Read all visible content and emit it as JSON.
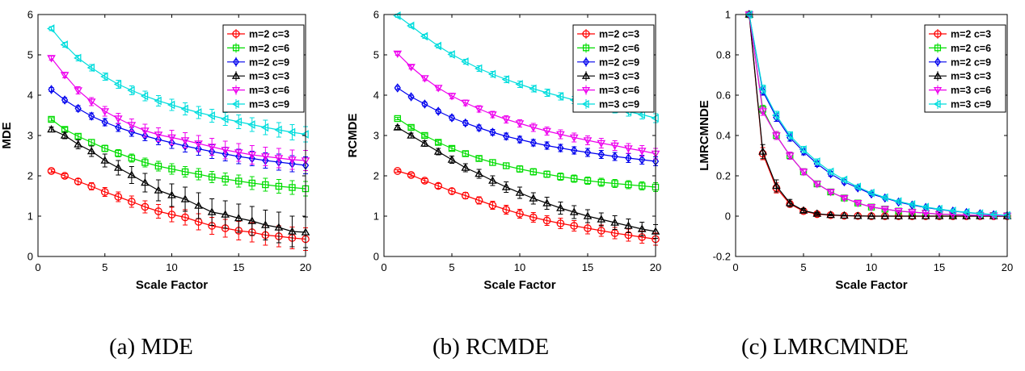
{
  "chart_data": [
    {
      "type": "line",
      "caption": "(a)   MDE",
      "ylabel": "MDE",
      "xlabel": "Scale Factor",
      "xlim": [
        0,
        20
      ],
      "ylim": [
        0,
        6
      ],
      "xticks": [
        0,
        5,
        10,
        15,
        20
      ],
      "yticks": [
        0,
        1,
        2,
        3,
        4,
        5,
        6
      ],
      "x": [
        1,
        2,
        3,
        4,
        5,
        6,
        7,
        8,
        9,
        10,
        11,
        12,
        13,
        14,
        15,
        16,
        17,
        18,
        19,
        20
      ],
      "legend_position": "top-right",
      "series": [
        {
          "name": "m=2 c=3",
          "color": "#ff0000",
          "marker": "circle",
          "values": [
            2.12,
            2.0,
            1.86,
            1.74,
            1.6,
            1.48,
            1.36,
            1.23,
            1.12,
            1.04,
            0.97,
            0.86,
            0.76,
            0.7,
            0.64,
            0.6,
            0.53,
            0.5,
            0.46,
            0.43
          ],
          "errors": [
            0.04,
            0.05,
            0.07,
            0.09,
            0.11,
            0.12,
            0.14,
            0.15,
            0.17,
            0.18,
            0.19,
            0.2,
            0.21,
            0.22,
            0.23,
            0.24,
            0.25,
            0.26,
            0.27,
            0.28
          ]
        },
        {
          "name": "m=2 c=6",
          "color": "#00dd00",
          "marker": "square",
          "values": [
            3.4,
            3.15,
            2.98,
            2.83,
            2.68,
            2.56,
            2.44,
            2.33,
            2.24,
            2.17,
            2.1,
            2.04,
            1.97,
            1.92,
            1.87,
            1.82,
            1.78,
            1.74,
            1.71,
            1.68
          ],
          "errors": [
            0.04,
            0.05,
            0.06,
            0.07,
            0.08,
            0.09,
            0.1,
            0.11,
            0.12,
            0.13,
            0.13,
            0.14,
            0.14,
            0.15,
            0.15,
            0.16,
            0.16,
            0.17,
            0.17,
            0.18
          ]
        },
        {
          "name": "m=2 c=9",
          "color": "#0000ee",
          "marker": "diamond",
          "values": [
            4.14,
            3.88,
            3.67,
            3.48,
            3.33,
            3.2,
            3.09,
            2.99,
            2.9,
            2.82,
            2.74,
            2.67,
            2.6,
            2.54,
            2.48,
            2.43,
            2.38,
            2.34,
            2.3,
            2.26
          ],
          "errors": [
            0.05,
            0.06,
            0.07,
            0.08,
            0.09,
            0.1,
            0.11,
            0.12,
            0.13,
            0.14,
            0.15,
            0.16,
            0.17,
            0.17,
            0.18,
            0.18,
            0.19,
            0.2,
            0.2,
            0.21
          ]
        },
        {
          "name": "m=3 c=3",
          "color": "#000000",
          "marker": "triangle-up",
          "values": [
            3.15,
            3.0,
            2.78,
            2.61,
            2.38,
            2.2,
            2.02,
            1.83,
            1.64,
            1.52,
            1.42,
            1.26,
            1.1,
            1.04,
            0.95,
            0.88,
            0.78,
            0.72,
            0.62,
            0.6
          ],
          "errors": [
            0.06,
            0.08,
            0.11,
            0.13,
            0.16,
            0.18,
            0.21,
            0.23,
            0.26,
            0.28,
            0.3,
            0.32,
            0.33,
            0.34,
            0.35,
            0.36,
            0.37,
            0.38,
            0.38,
            0.38
          ]
        },
        {
          "name": "m=3 c=6",
          "color": "#ee00ee",
          "marker": "triangle-down",
          "values": [
            4.92,
            4.5,
            4.12,
            3.84,
            3.6,
            3.42,
            3.26,
            3.12,
            3.02,
            2.95,
            2.88,
            2.8,
            2.72,
            2.64,
            2.58,
            2.52,
            2.48,
            2.44,
            2.4,
            2.38
          ],
          "errors": [
            0.05,
            0.07,
            0.09,
            0.1,
            0.12,
            0.13,
            0.15,
            0.16,
            0.17,
            0.18,
            0.19,
            0.2,
            0.21,
            0.22,
            0.22,
            0.23,
            0.23,
            0.24,
            0.24,
            0.25
          ]
        },
        {
          "name": "m=3 c=9",
          "color": "#00dddd",
          "marker": "triangle-left",
          "values": [
            5.65,
            5.25,
            4.92,
            4.68,
            4.46,
            4.27,
            4.12,
            3.98,
            3.86,
            3.76,
            3.66,
            3.57,
            3.49,
            3.41,
            3.34,
            3.27,
            3.2,
            3.14,
            3.08,
            3.03
          ],
          "errors": [
            0.05,
            0.06,
            0.07,
            0.08,
            0.09,
            0.1,
            0.11,
            0.12,
            0.13,
            0.14,
            0.15,
            0.15,
            0.16,
            0.16,
            0.17,
            0.17,
            0.18,
            0.18,
            0.19,
            0.19
          ]
        }
      ]
    },
    {
      "type": "line",
      "caption": "(b) RCMDE",
      "ylabel": "RCMDE",
      "xlabel": "Scale Factor",
      "xlim": [
        0,
        20
      ],
      "ylim": [
        0,
        6
      ],
      "xticks": [
        0,
        5,
        10,
        15,
        20
      ],
      "yticks": [
        0,
        1,
        2,
        3,
        4,
        5,
        6
      ],
      "x": [
        1,
        2,
        3,
        4,
        5,
        6,
        7,
        8,
        9,
        10,
        11,
        12,
        13,
        14,
        15,
        16,
        17,
        18,
        19,
        20
      ],
      "legend_position": "top-right",
      "series": [
        {
          "name": "m=2 c=3",
          "color": "#ff0000",
          "marker": "circle",
          "values": [
            2.12,
            2.02,
            1.88,
            1.75,
            1.62,
            1.51,
            1.39,
            1.27,
            1.16,
            1.06,
            0.97,
            0.89,
            0.82,
            0.76,
            0.7,
            0.64,
            0.58,
            0.53,
            0.48,
            0.43
          ],
          "errors": [
            0.03,
            0.04,
            0.05,
            0.06,
            0.07,
            0.08,
            0.09,
            0.1,
            0.11,
            0.11,
            0.12,
            0.12,
            0.13,
            0.13,
            0.14,
            0.14,
            0.14,
            0.15,
            0.15,
            0.15
          ]
        },
        {
          "name": "m=2 c=6",
          "color": "#00dd00",
          "marker": "square",
          "values": [
            3.42,
            3.2,
            3.0,
            2.83,
            2.68,
            2.55,
            2.43,
            2.33,
            2.25,
            2.17,
            2.1,
            2.04,
            1.98,
            1.93,
            1.88,
            1.84,
            1.81,
            1.78,
            1.75,
            1.72
          ],
          "errors": [
            0.03,
            0.04,
            0.04,
            0.05,
            0.05,
            0.06,
            0.06,
            0.07,
            0.07,
            0.08,
            0.08,
            0.08,
            0.09,
            0.09,
            0.09,
            0.1,
            0.1,
            0.1,
            0.1,
            0.11
          ]
        },
        {
          "name": "m=2 c=9",
          "color": "#0000ee",
          "marker": "diamond",
          "values": [
            4.18,
            3.96,
            3.78,
            3.6,
            3.44,
            3.31,
            3.19,
            3.08,
            2.98,
            2.9,
            2.82,
            2.75,
            2.69,
            2.63,
            2.58,
            2.53,
            2.48,
            2.44,
            2.4,
            2.36
          ],
          "errors": [
            0.04,
            0.04,
            0.05,
            0.05,
            0.06,
            0.06,
            0.07,
            0.07,
            0.08,
            0.08,
            0.08,
            0.09,
            0.09,
            0.09,
            0.1,
            0.1,
            0.1,
            0.11,
            0.11,
            0.11
          ]
        },
        {
          "name": "m=3 c=3",
          "color": "#000000",
          "marker": "triangle-up",
          "values": [
            3.2,
            3.0,
            2.8,
            2.6,
            2.4,
            2.2,
            2.05,
            1.88,
            1.72,
            1.58,
            1.44,
            1.32,
            1.2,
            1.1,
            1.0,
            0.92,
            0.84,
            0.76,
            0.68,
            0.62
          ],
          "errors": [
            0.05,
            0.06,
            0.07,
            0.08,
            0.09,
            0.1,
            0.11,
            0.12,
            0.13,
            0.14,
            0.14,
            0.15,
            0.15,
            0.16,
            0.16,
            0.16,
            0.17,
            0.17,
            0.17,
            0.17
          ]
        },
        {
          "name": "m=3 c=6",
          "color": "#ee00ee",
          "marker": "triangle-down",
          "values": [
            5.03,
            4.7,
            4.42,
            4.18,
            3.98,
            3.81,
            3.66,
            3.52,
            3.4,
            3.3,
            3.2,
            3.11,
            3.03,
            2.95,
            2.88,
            2.81,
            2.75,
            2.68,
            2.62,
            2.55
          ],
          "errors": [
            0.04,
            0.05,
            0.06,
            0.06,
            0.07,
            0.07,
            0.08,
            0.08,
            0.09,
            0.09,
            0.1,
            0.1,
            0.11,
            0.11,
            0.11,
            0.12,
            0.12,
            0.12,
            0.13,
            0.13
          ]
        },
        {
          "name": "m=3 c=9",
          "color": "#00dddd",
          "marker": "triangle-left",
          "values": [
            5.97,
            5.72,
            5.46,
            5.22,
            5.01,
            4.83,
            4.66,
            4.52,
            4.39,
            4.27,
            4.16,
            4.06,
            3.97,
            3.88,
            3.8,
            3.73,
            3.66,
            3.59,
            3.52,
            3.43
          ],
          "errors": [
            0.04,
            0.04,
            0.05,
            0.05,
            0.06,
            0.06,
            0.07,
            0.07,
            0.08,
            0.08,
            0.08,
            0.09,
            0.09,
            0.09,
            0.1,
            0.1,
            0.1,
            0.11,
            0.11,
            0.11
          ]
        }
      ]
    },
    {
      "type": "line",
      "caption": "(c) LMRCMNDE",
      "ylabel": "LMRCMNDE",
      "xlabel": "Scale Factor",
      "xlim": [
        0,
        20
      ],
      "ylim": [
        -0.2,
        1
      ],
      "xticks": [
        0,
        5,
        10,
        15,
        20
      ],
      "yticks": [
        -0.2,
        0,
        0.2,
        0.4,
        0.6,
        0.8,
        1
      ],
      "x": [
        1,
        2,
        3,
        4,
        5,
        6,
        7,
        8,
        9,
        10,
        11,
        12,
        13,
        14,
        15,
        16,
        17,
        18,
        19,
        20
      ],
      "legend_position": "top-right",
      "series": [
        {
          "name": "m=2 c=3",
          "color": "#ff0000",
          "marker": "circle",
          "values": [
            1.0,
            0.31,
            0.14,
            0.06,
            0.025,
            0.01,
            0.005,
            0.002,
            0.001,
            0,
            0,
            0,
            0,
            0,
            0,
            0,
            0,
            0,
            0,
            0
          ],
          "errors": [
            0.005,
            0.03,
            0.025,
            0.015,
            0.01,
            0.006,
            0.004,
            0.002,
            0.001,
            0.001,
            0.001,
            0.001,
            0.001,
            0.001,
            0.001,
            0.001,
            0.001,
            0.001,
            0.001,
            0.001
          ]
        },
        {
          "name": "m=2 c=6",
          "color": "#00dd00",
          "marker": "square",
          "values": [
            1.0,
            0.53,
            0.4,
            0.3,
            0.22,
            0.16,
            0.12,
            0.09,
            0.065,
            0.045,
            0.035,
            0.025,
            0.02,
            0.015,
            0.01,
            0.008,
            0.005,
            0.004,
            0.003,
            0.002
          ],
          "errors": [
            0.005,
            0.02,
            0.02,
            0.018,
            0.015,
            0.012,
            0.01,
            0.008,
            0.007,
            0.006,
            0.005,
            0.004,
            0.004,
            0.003,
            0.003,
            0.002,
            0.002,
            0.002,
            0.002,
            0.002
          ]
        },
        {
          "name": "m=2 c=9",
          "color": "#0000ee",
          "marker": "diamond",
          "values": [
            1.0,
            0.62,
            0.49,
            0.39,
            0.32,
            0.26,
            0.21,
            0.17,
            0.14,
            0.11,
            0.09,
            0.07,
            0.055,
            0.043,
            0.033,
            0.025,
            0.018,
            0.012,
            0.007,
            0.003
          ],
          "errors": [
            0.005,
            0.02,
            0.02,
            0.018,
            0.016,
            0.014,
            0.012,
            0.01,
            0.009,
            0.008,
            0.007,
            0.006,
            0.005,
            0.005,
            0.004,
            0.004,
            0.003,
            0.003,
            0.003,
            0.003
          ]
        },
        {
          "name": "m=3 c=3",
          "color": "#000000",
          "marker": "triangle-up",
          "values": [
            1.0,
            0.32,
            0.15,
            0.065,
            0.028,
            0.012,
            0.006,
            0.003,
            0.001,
            0,
            0,
            0,
            0,
            0,
            0,
            0,
            0,
            0,
            0,
            0
          ],
          "errors": [
            0.005,
            0.035,
            0.03,
            0.018,
            0.01,
            0.006,
            0.004,
            0.002,
            0.001,
            0.001,
            0.001,
            0.001,
            0.001,
            0.001,
            0.001,
            0.001,
            0.001,
            0.001,
            0.001,
            0.001
          ]
        },
        {
          "name": "m=3 c=6",
          "color": "#ee00ee",
          "marker": "triangle-down",
          "values": [
            1.0,
            0.52,
            0.4,
            0.3,
            0.22,
            0.16,
            0.12,
            0.09,
            0.065,
            0.045,
            0.035,
            0.025,
            0.02,
            0.015,
            0.01,
            0.008,
            0.005,
            0.004,
            0.003,
            0.002
          ],
          "errors": [
            0.005,
            0.02,
            0.02,
            0.018,
            0.015,
            0.012,
            0.01,
            0.008,
            0.007,
            0.006,
            0.005,
            0.004,
            0.004,
            0.003,
            0.003,
            0.002,
            0.002,
            0.002,
            0.002,
            0.002
          ]
        },
        {
          "name": "m=3 c=9",
          "color": "#00dddd",
          "marker": "triangle-left",
          "values": [
            1.0,
            0.63,
            0.5,
            0.4,
            0.33,
            0.27,
            0.22,
            0.18,
            0.145,
            0.115,
            0.092,
            0.073,
            0.058,
            0.045,
            0.035,
            0.026,
            0.019,
            0.013,
            0.008,
            0.004
          ],
          "errors": [
            0.005,
            0.02,
            0.02,
            0.018,
            0.016,
            0.014,
            0.012,
            0.01,
            0.009,
            0.008,
            0.007,
            0.006,
            0.005,
            0.005,
            0.004,
            0.004,
            0.003,
            0.003,
            0.003,
            0.003
          ]
        }
      ]
    }
  ]
}
